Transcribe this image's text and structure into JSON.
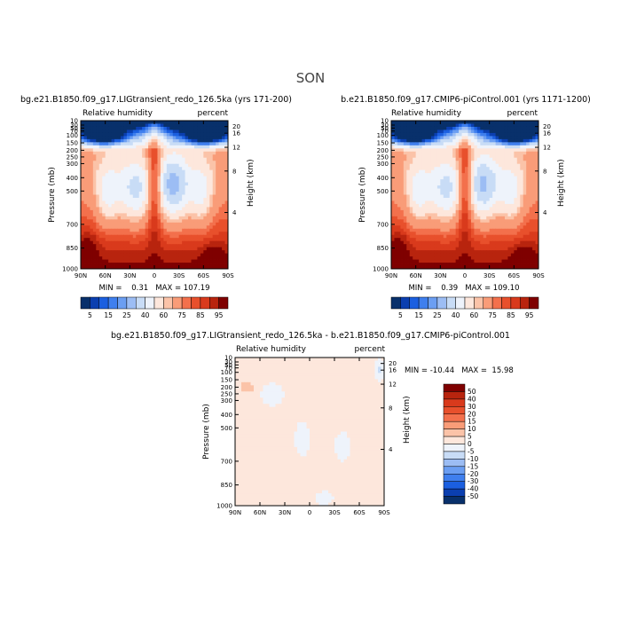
{
  "figure": {
    "title": "SON"
  },
  "chart_data": [
    {
      "type": "heatmap",
      "id": "left",
      "title": "bg.e21.B1850.f09_g17.LIGtransient_redo_126.5ka (yrs 171-200)",
      "variable": "Relative humidity",
      "units": "percent",
      "ylabel": "Pressure (mb)",
      "ylabel_right": "Height (km)",
      "x_ticks": [
        "90N",
        "60N",
        "30N",
        "0",
        "30S",
        "60S",
        "90S"
      ],
      "y_ticks": [
        "10",
        "30",
        "50",
        "70",
        "100",
        "150",
        "200",
        "250",
        "300",
        "400",
        "500",
        "700",
        "850",
        "1000"
      ],
      "y_ticks_right": [
        "20",
        "16",
        "12",
        "8",
        "4"
      ],
      "stats": "MIN =    0.31   MAX = 107.19",
      "min": 0.31,
      "max": 107.19
    },
    {
      "type": "heatmap",
      "id": "right",
      "title": "b.e21.B1850.f09_g17.CMIP6-piControl.001 (yrs 1171-1200)",
      "variable": "Relative humidity",
      "units": "percent",
      "ylabel": "Pressure (mb)",
      "ylabel_right": "Height (km)",
      "x_ticks": [
        "90N",
        "60N",
        "30N",
        "0",
        "30S",
        "60S",
        "90S"
      ],
      "y_ticks": [
        "10",
        "30",
        "50",
        "70",
        "100",
        "150",
        "200",
        "250",
        "300",
        "400",
        "500",
        "700",
        "850",
        "1000"
      ],
      "y_ticks_right": [
        "20",
        "16",
        "12",
        "8",
        "4"
      ],
      "stats": "MIN =    0.39   MAX = 109.10",
      "min": 0.39,
      "max": 109.1
    },
    {
      "type": "heatmap",
      "id": "diff",
      "title": "bg.e21.B1850.f09_g17.LIGtransient_redo_126.5ka - b.e21.B1850.f09_g17.CMIP6-piControl.001",
      "variable": "Relative humidity",
      "units": "percent",
      "ylabel": "Pressure (mb)",
      "ylabel_right": "Height (km)",
      "x_ticks": [
        "90N",
        "60N",
        "30N",
        "0",
        "30S",
        "60S",
        "90S"
      ],
      "y_ticks": [
        "10",
        "30",
        "50",
        "70",
        "100",
        "150",
        "200",
        "250",
        "300",
        "400",
        "500",
        "700",
        "850",
        "1000"
      ],
      "y_ticks_right": [
        "20",
        "16",
        "12",
        "8",
        "4"
      ],
      "stats": "MIN = -10.44   MAX =  15.98",
      "min": -10.44,
      "max": 15.98
    }
  ],
  "colorbars": {
    "absolute": {
      "labels": [
        "5",
        "15",
        "25",
        "40",
        "60",
        "75",
        "85",
        "95"
      ],
      "colors": [
        "#08306b",
        "#0b3fb0",
        "#1b5fe0",
        "#3f7fee",
        "#6b9ef2",
        "#9cbdf4",
        "#c8dcf6",
        "#eef3fb",
        "#fde7dc",
        "#fbc3a8",
        "#f99c78",
        "#f3704c",
        "#e8502c",
        "#d93a1c",
        "#b8240e",
        "#7f0000"
      ]
    },
    "difference": {
      "labels": [
        "50",
        "40",
        "30",
        "20",
        "15",
        "10",
        "5",
        "0",
        "-5",
        "-10",
        "-15",
        "-20",
        "-30",
        "-40",
        "-50"
      ],
      "colors": [
        "#7f0000",
        "#b8240e",
        "#d93a1c",
        "#e8502c",
        "#f3704c",
        "#f99c78",
        "#fbc3a8",
        "#fde7dc",
        "#eef3fb",
        "#c8dcf6",
        "#9cbdf4",
        "#6b9ef2",
        "#3f7fee",
        "#1b5fe0",
        "#0b3fb0",
        "#08306b"
      ]
    }
  }
}
